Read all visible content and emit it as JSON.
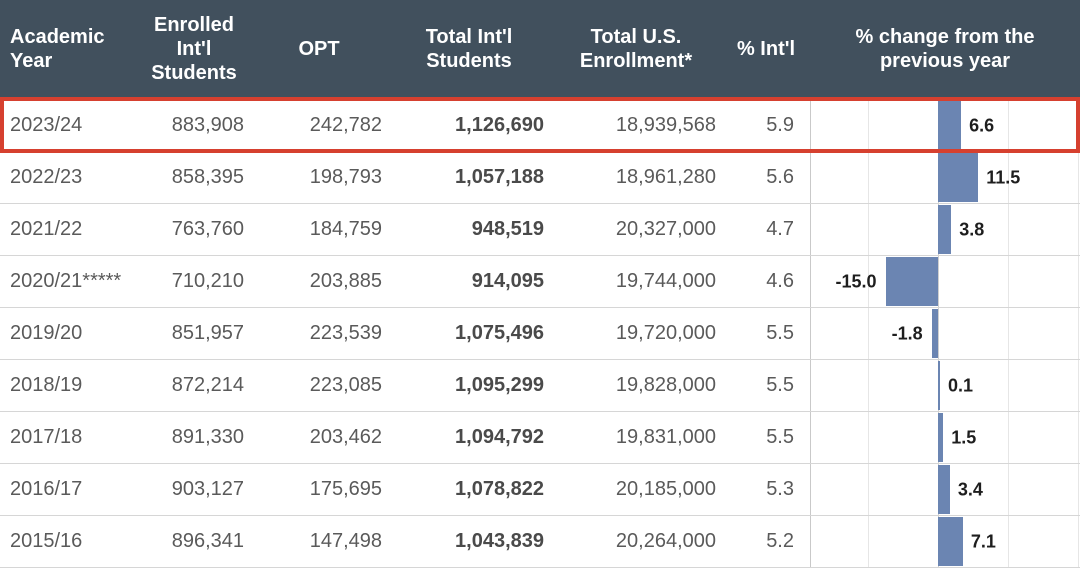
{
  "colors": {
    "header_bg": "#41505d",
    "header_text": "#ffffff",
    "body_text": "#5a5a5a",
    "bar_fill": "#6b85b2",
    "highlight_red": "#d6402f",
    "gridline": "#e6e6e6",
    "row_border": "#d6d6d6"
  },
  "table": {
    "columns": [
      {
        "label": "Academic Year"
      },
      {
        "label": "Enrolled Int'l Students"
      },
      {
        "label": "OPT"
      },
      {
        "label": "Total Int'l Students"
      },
      {
        "label": "Total U.S. Enrollment*"
      },
      {
        "label": "% Int'l"
      },
      {
        "label": "% change from the previous year"
      }
    ],
    "rows": [
      {
        "year": "2023/24",
        "enrolled": "883,908",
        "opt": "242,782",
        "total_intl": "1,126,690",
        "total_us": "18,939,568",
        "pct_intl": "5.9",
        "pct_change": 6.6,
        "highlighted": true
      },
      {
        "year": "2022/23",
        "enrolled": "858,395",
        "opt": "198,793",
        "total_intl": "1,057,188",
        "total_us": "18,961,280",
        "pct_intl": "5.6",
        "pct_change": 11.5
      },
      {
        "year": "2021/22",
        "enrolled": "763,760",
        "opt": "184,759",
        "total_intl": "948,519",
        "total_us": "20,327,000",
        "pct_intl": "4.7",
        "pct_change": 3.8
      },
      {
        "year": "2020/21*****",
        "enrolled": "710,210",
        "opt": "203,885",
        "total_intl": "914,095",
        "total_us": "19,744,000",
        "pct_intl": "4.6",
        "pct_change": -15.0
      },
      {
        "year": "2019/20",
        "enrolled": "851,957",
        "opt": "223,539",
        "total_intl": "1,075,496",
        "total_us": "19,720,000",
        "pct_intl": "5.5",
        "pct_change": -1.8
      },
      {
        "year": "2018/19",
        "enrolled": "872,214",
        "opt": "223,085",
        "total_intl": "1,095,299",
        "total_us": "19,828,000",
        "pct_intl": "5.5",
        "pct_change": 0.1
      },
      {
        "year": "2017/18",
        "enrolled": "891,330",
        "opt": "203,462",
        "total_intl": "1,094,792",
        "total_us": "19,831,000",
        "pct_intl": "5.5",
        "pct_change": 1.5
      },
      {
        "year": "2016/17",
        "enrolled": "903,127",
        "opt": "175,695",
        "total_intl": "1,078,822",
        "total_us": "20,185,000",
        "pct_intl": "5.3",
        "pct_change": 3.4
      },
      {
        "year": "2015/16",
        "enrolled": "896,341",
        "opt": "147,498",
        "total_intl": "1,043,839",
        "total_us": "20,264,000",
        "pct_intl": "5.2",
        "pct_change": 7.1
      }
    ]
  },
  "chart_data": {
    "type": "table",
    "columns": [
      "Academic Year",
      "Enrolled Int'l Students",
      "OPT",
      "Total Int'l Students",
      "Total U.S. Enrollment*",
      "% Int'l",
      "% change from the previous year"
    ],
    "rows": [
      [
        "2023/24",
        "883,908",
        "242,782",
        "1,126,690",
        "18,939,568",
        "5.9",
        "6.6"
      ],
      [
        "2022/23",
        "858,395",
        "198,793",
        "1,057,188",
        "18,961,280",
        "5.6",
        "11.5"
      ],
      [
        "2021/22",
        "763,760",
        "184,759",
        "948,519",
        "20,327,000",
        "4.7",
        "3.8"
      ],
      [
        "2020/21*****",
        "710,210",
        "203,885",
        "914,095",
        "19,744,000",
        "4.6",
        "-15.0"
      ],
      [
        "2019/20",
        "851,957",
        "223,539",
        "1,075,496",
        "19,720,000",
        "5.5",
        "-1.8"
      ],
      [
        "2018/19",
        "872,214",
        "223,085",
        "1,095,299",
        "19,828,000",
        "5.5",
        "0.1"
      ],
      [
        "2017/18",
        "891,330",
        "203,462",
        "1,094,792",
        "19,831,000",
        "5.5",
        "1.5"
      ],
      [
        "2016/17",
        "903,127",
        "175,695",
        "1,078,822",
        "20,185,000",
        "5.3",
        "3.4"
      ],
      [
        "2015/16",
        "896,341",
        "147,498",
        "1,043,839",
        "20,264,000",
        "5.2",
        "7.1"
      ]
    ],
    "embedded_chart": {
      "type": "bar",
      "orientation": "horizontal",
      "column": "% change from the previous year",
      "categories": [
        "2023/24",
        "2022/23",
        "2021/22",
        "2020/21*****",
        "2019/20",
        "2018/19",
        "2017/18",
        "2016/17",
        "2015/16"
      ],
      "values": [
        6.6,
        11.5,
        3.8,
        -15.0,
        -1.8,
        0.1,
        1.5,
        3.4,
        7.1
      ],
      "xlim": [
        -35,
        45
      ],
      "grid": true,
      "bar_color": "#6b85b2",
      "legend_position": "none",
      "value_labels": "outside-end"
    },
    "highlighted_row": "2023/24",
    "highlight_color": "#d6402f"
  }
}
